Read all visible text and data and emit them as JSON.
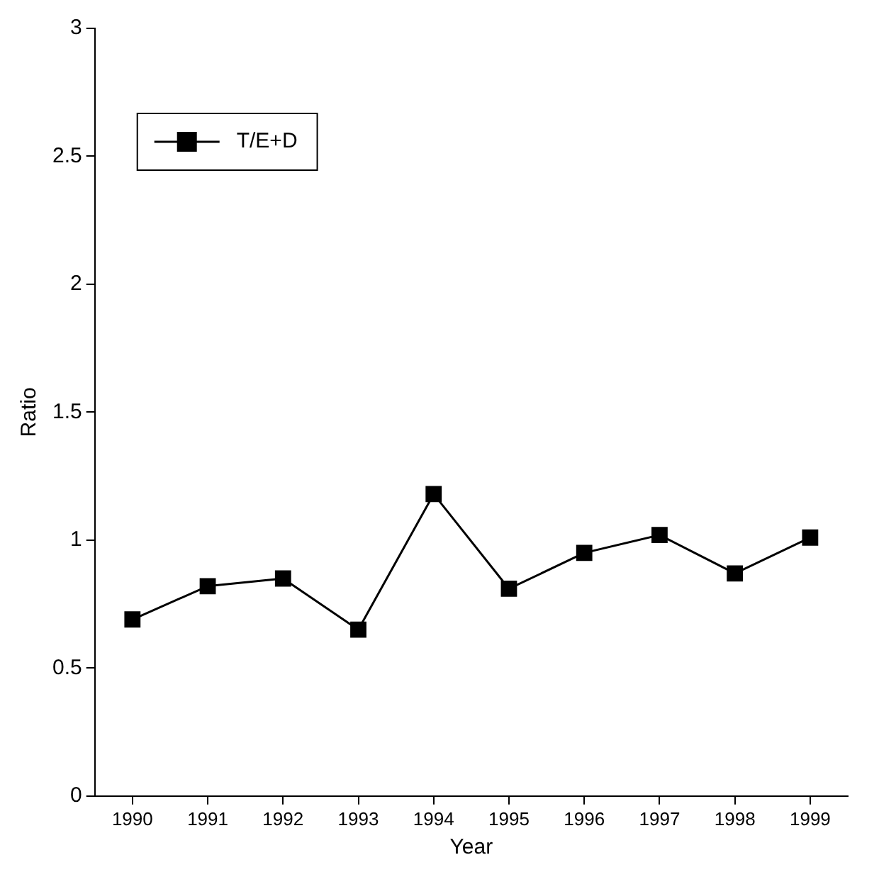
{
  "chart_data": {
    "type": "line",
    "xlabel": "Year",
    "ylabel": "Ratio",
    "categories": [
      "1990",
      "1991",
      "1992",
      "1993",
      "1994",
      "1995",
      "1996",
      "1997",
      "1998",
      "1999"
    ],
    "series": [
      {
        "name": "T/E+D",
        "color": "#000000",
        "values": [
          0.69,
          0.82,
          0.85,
          0.65,
          1.18,
          0.81,
          0.95,
          1.02,
          0.87,
          1.01
        ]
      }
    ],
    "ylim": [
      0,
      3
    ],
    "yticks": [
      0,
      0.5,
      1,
      1.5,
      2,
      2.5,
      3
    ],
    "grid": false,
    "legend": "top left",
    "marker": "square",
    "line_style": "solid"
  }
}
